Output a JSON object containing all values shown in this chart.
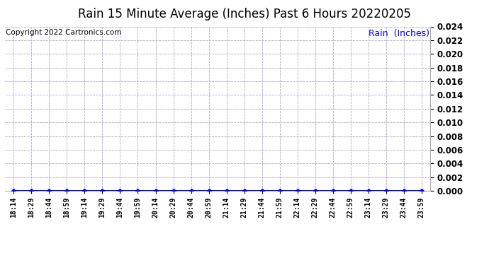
{
  "title": "Rain 15 Minute Average (Inches) Past 6 Hours 20220205",
  "copyright_text": "Copyright 2022 Cartronics.com",
  "legend_label": "Rain  (Inches)",
  "x_labels": [
    "18:14",
    "18:29",
    "18:44",
    "18:59",
    "19:14",
    "19:29",
    "19:44",
    "19:59",
    "20:14",
    "20:29",
    "20:44",
    "20:59",
    "21:14",
    "21:29",
    "21:44",
    "21:59",
    "22:14",
    "22:29",
    "22:44",
    "22:59",
    "23:14",
    "23:29",
    "23:44",
    "23:59"
  ],
  "y_values": [
    0.0,
    0.0,
    0.0,
    0.0,
    0.0,
    0.0,
    0.0,
    0.0,
    0.0,
    0.0,
    0.0,
    0.0,
    0.0,
    0.0,
    0.0,
    0.0,
    0.0,
    0.0,
    0.0,
    0.0,
    0.0,
    0.0,
    0.0,
    0.0
  ],
  "ylim": [
    0.0,
    0.024
  ],
  "y_ticks": [
    0.0,
    0.002,
    0.004,
    0.006,
    0.008,
    0.01,
    0.012,
    0.014,
    0.016,
    0.018,
    0.02,
    0.022,
    0.024
  ],
  "line_color": "#0000ff",
  "marker": "D",
  "marker_size": 3,
  "grid_color": "#aaaacc",
  "background_color": "#ffffff",
  "title_fontsize": 12,
  "copyright_fontsize": 7.5,
  "legend_fontsize": 9,
  "tick_fontsize": 7,
  "ytick_fontsize": 8.5
}
